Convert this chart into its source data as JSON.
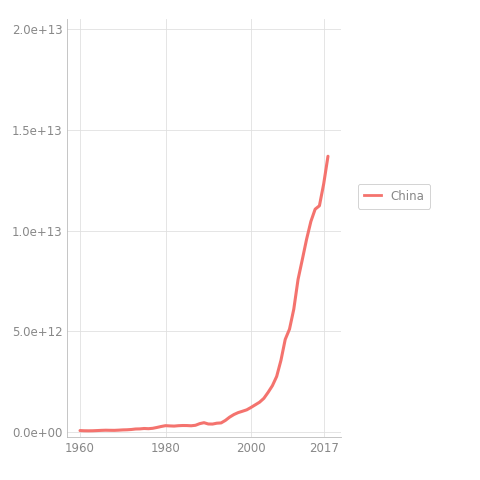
{
  "title": "",
  "xlabel": "",
  "line_color": "#F4736E",
  "line_width": 2.2,
  "legend_label": "China",
  "background_color": "#FFFFFF",
  "grid_color": "#E0E0E0",
  "tick_label_color": "#888888",
  "axis_label_color": "#555555",
  "xlim": [
    1957,
    2021
  ],
  "ylim": [
    -250000000000.0,
    20500000000000.0
  ],
  "xticks": [
    1960,
    1980,
    2000,
    2017
  ],
  "yticks": [
    0.0,
    5000000000000.0,
    10000000000000.0,
    15000000000000.0,
    20000000000000.0
  ],
  "years": [
    1960,
    1961,
    1962,
    1963,
    1964,
    1965,
    1966,
    1967,
    1968,
    1969,
    1970,
    1971,
    1972,
    1973,
    1974,
    1975,
    1976,
    1977,
    1978,
    1979,
    1980,
    1981,
    1982,
    1983,
    1984,
    1985,
    1986,
    1987,
    1988,
    1989,
    1990,
    1991,
    1992,
    1993,
    1994,
    1995,
    1996,
    1997,
    1998,
    1999,
    2000,
    2001,
    2002,
    2003,
    2004,
    2005,
    2006,
    2007,
    2008,
    2009,
    2010,
    2011,
    2012,
    2013,
    2014,
    2015,
    2016,
    2017,
    2018
  ],
  "gdp": [
    59600000000.0,
    50000000000.0,
    47200000000.0,
    50300000000.0,
    59500000000.0,
    69900000000.0,
    76800000000.0,
    72700000000.0,
    70300000000.0,
    79600000000.0,
    92700000000.0,
    98800000000.0,
    113000000000.0,
    138000000000.0,
    143000000000.0,
    163000000000.0,
    153000000000.0,
    172000000000.0,
    215000000000.0,
    263000000000.0,
    303000000000.0,
    291000000000.0,
    282000000000.0,
    301000000000.0,
    311000000000.0,
    309000000000.0,
    298000000000.0,
    322000000000.0,
    404000000000.0,
    451000000000.0,
    387000000000.0,
    383000000000.0,
    426000000000.0,
    440000000000.0,
    564000000000.0,
    728000000000.0,
    857000000000.0,
    953000000000.0,
    1020000000000.0,
    1090000000000.0,
    1210000000000.0,
    1340000000000.0,
    1470000000000.0,
    1660000000000.0,
    1960000000000.0,
    2290000000000.0,
    2750000000000.0,
    3550000000000.0,
    4590000000000.0,
    5100000000000.0,
    6090000000000.0,
    7570000000000.0,
    8560000000000.0,
    9570000000000.0,
    10450000000000.0,
    11060000000000.0,
    11230000000000.0,
    12320000000000.0,
    13690000000000.0
  ]
}
